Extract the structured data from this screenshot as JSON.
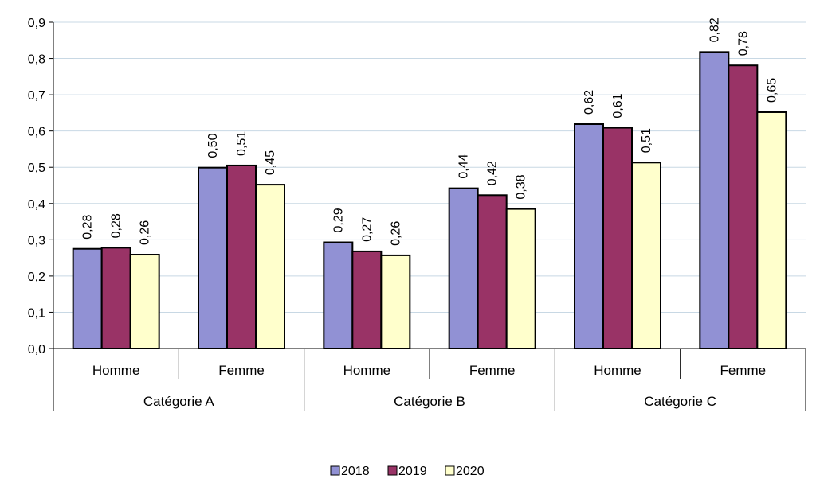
{
  "chart_data": {
    "type": "bar",
    "groups": [
      {
        "label": "Catégorie A",
        "categories": [
          "Homme",
          "Femme"
        ]
      },
      {
        "label": "Catégorie B",
        "categories": [
          "Homme",
          "Femme"
        ]
      },
      {
        "label": "Catégorie C",
        "categories": [
          "Homme",
          "Femme"
        ]
      }
    ],
    "series": [
      {
        "name": "2018",
        "color": "#9191d4",
        "values": [
          0.275,
          0.499,
          0.293,
          0.442,
          0.619,
          0.818
        ]
      },
      {
        "name": "2019",
        "color": "#993366",
        "values": [
          0.278,
          0.505,
          0.268,
          0.423,
          0.609,
          0.781
        ]
      },
      {
        "name": "2020",
        "color": "#ffffcc",
        "values": [
          0.259,
          0.452,
          0.257,
          0.385,
          0.513,
          0.652
        ]
      }
    ],
    "data_labels": [
      [
        "0,28",
        "0,50",
        "0,29",
        "0,44",
        "0,62",
        "0,82"
      ],
      [
        "0,28",
        "0,51",
        "0,27",
        "0,42",
        "0,61",
        "0,78"
      ],
      [
        "0,26",
        "0,45",
        "0,26",
        "0,38",
        "0,51",
        "0,65"
      ]
    ],
    "y_ticks": [
      0,
      0.1,
      0.2,
      0.3,
      0.4,
      0.5,
      0.6,
      0.7,
      0.8,
      0.9
    ],
    "y_tick_labels": [
      "0,0",
      "0,1",
      "0,2",
      "0,3",
      "0,4",
      "0,5",
      "0,6",
      "0,7",
      "0,8",
      "0,9"
    ],
    "ylim": [
      0,
      0.9
    ],
    "grid": true,
    "legend_position": "bottom-center",
    "title": "",
    "xlabel": "",
    "ylabel": ""
  }
}
